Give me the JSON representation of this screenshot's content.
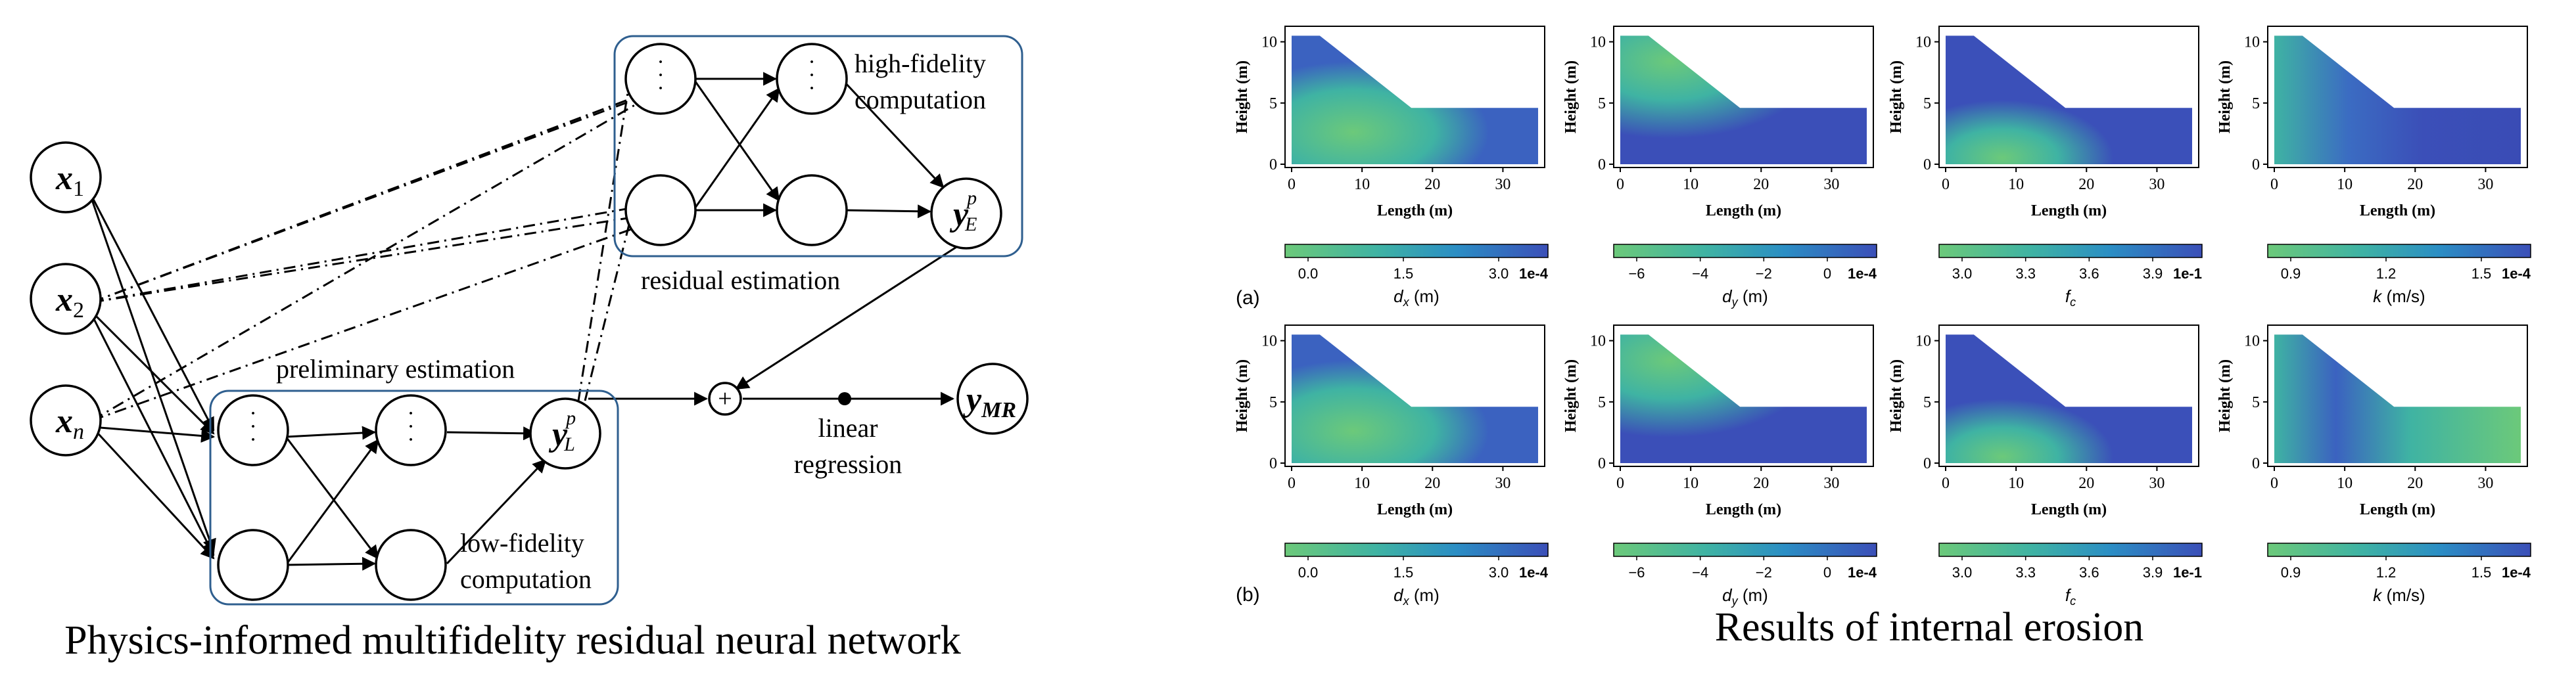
{
  "network": {
    "title": "Physics-informed multifidelity residual neural network",
    "inputs": [
      {
        "base": "x",
        "sub": "1"
      },
      {
        "base": "x",
        "sub": "2"
      },
      {
        "base": "x",
        "sub": "n"
      }
    ],
    "preliminary_label": "preliminary  estimation",
    "residual_label": "residual  estimation",
    "high_fidelity_label": [
      "high-fidelity",
      "computation"
    ],
    "low_fidelity_label": [
      "low-fidelity",
      "computation"
    ],
    "yL": {
      "base": "y",
      "sup": "p",
      "sub": "L"
    },
    "yE": {
      "base": "y",
      "sup": "p",
      "sub": "E"
    },
    "yMR": {
      "base": "y",
      "sub": "MR"
    },
    "regression_label": [
      "linear",
      "regression"
    ],
    "sum_symbol": "+",
    "dots": "·\n·\n·"
  },
  "results": {
    "title": "Results of internal erosion",
    "row_labels": [
      "(a)",
      "(b)"
    ],
    "xlabel": "Length (m)",
    "ylabel": "Height (m)",
    "x_ticks": [
      "0",
      "10",
      "20",
      "30"
    ],
    "y_ticks": [
      "10",
      "5",
      "0"
    ],
    "panels": [
      {
        "var": "d",
        "var_sub": "x",
        "unit": " (m)",
        "ticks": [
          "0.0",
          "1.5",
          "3.0"
        ],
        "scale": "1e-4"
      },
      {
        "var": "d",
        "var_sub": "y",
        "unit": " (m)",
        "ticks": [
          "−6",
          "−4",
          "−2",
          "0"
        ],
        "scale": "1e-4"
      },
      {
        "var": "f",
        "var_sub": "c",
        "unit": "",
        "ticks": [
          "3.0",
          "3.3",
          "3.6",
          "3.9"
        ],
        "scale": "1e-1"
      },
      {
        "var": "k",
        "var_sub": "",
        "unit": " (m/s)",
        "ticks": [
          "0.9",
          "1.2",
          "1.5"
        ],
        "scale": "1e-4"
      }
    ],
    "colormap": [
      "#6cc97a",
      "#3fb3a3",
      "#2b8ec4",
      "#3b4fb8"
    ]
  }
}
